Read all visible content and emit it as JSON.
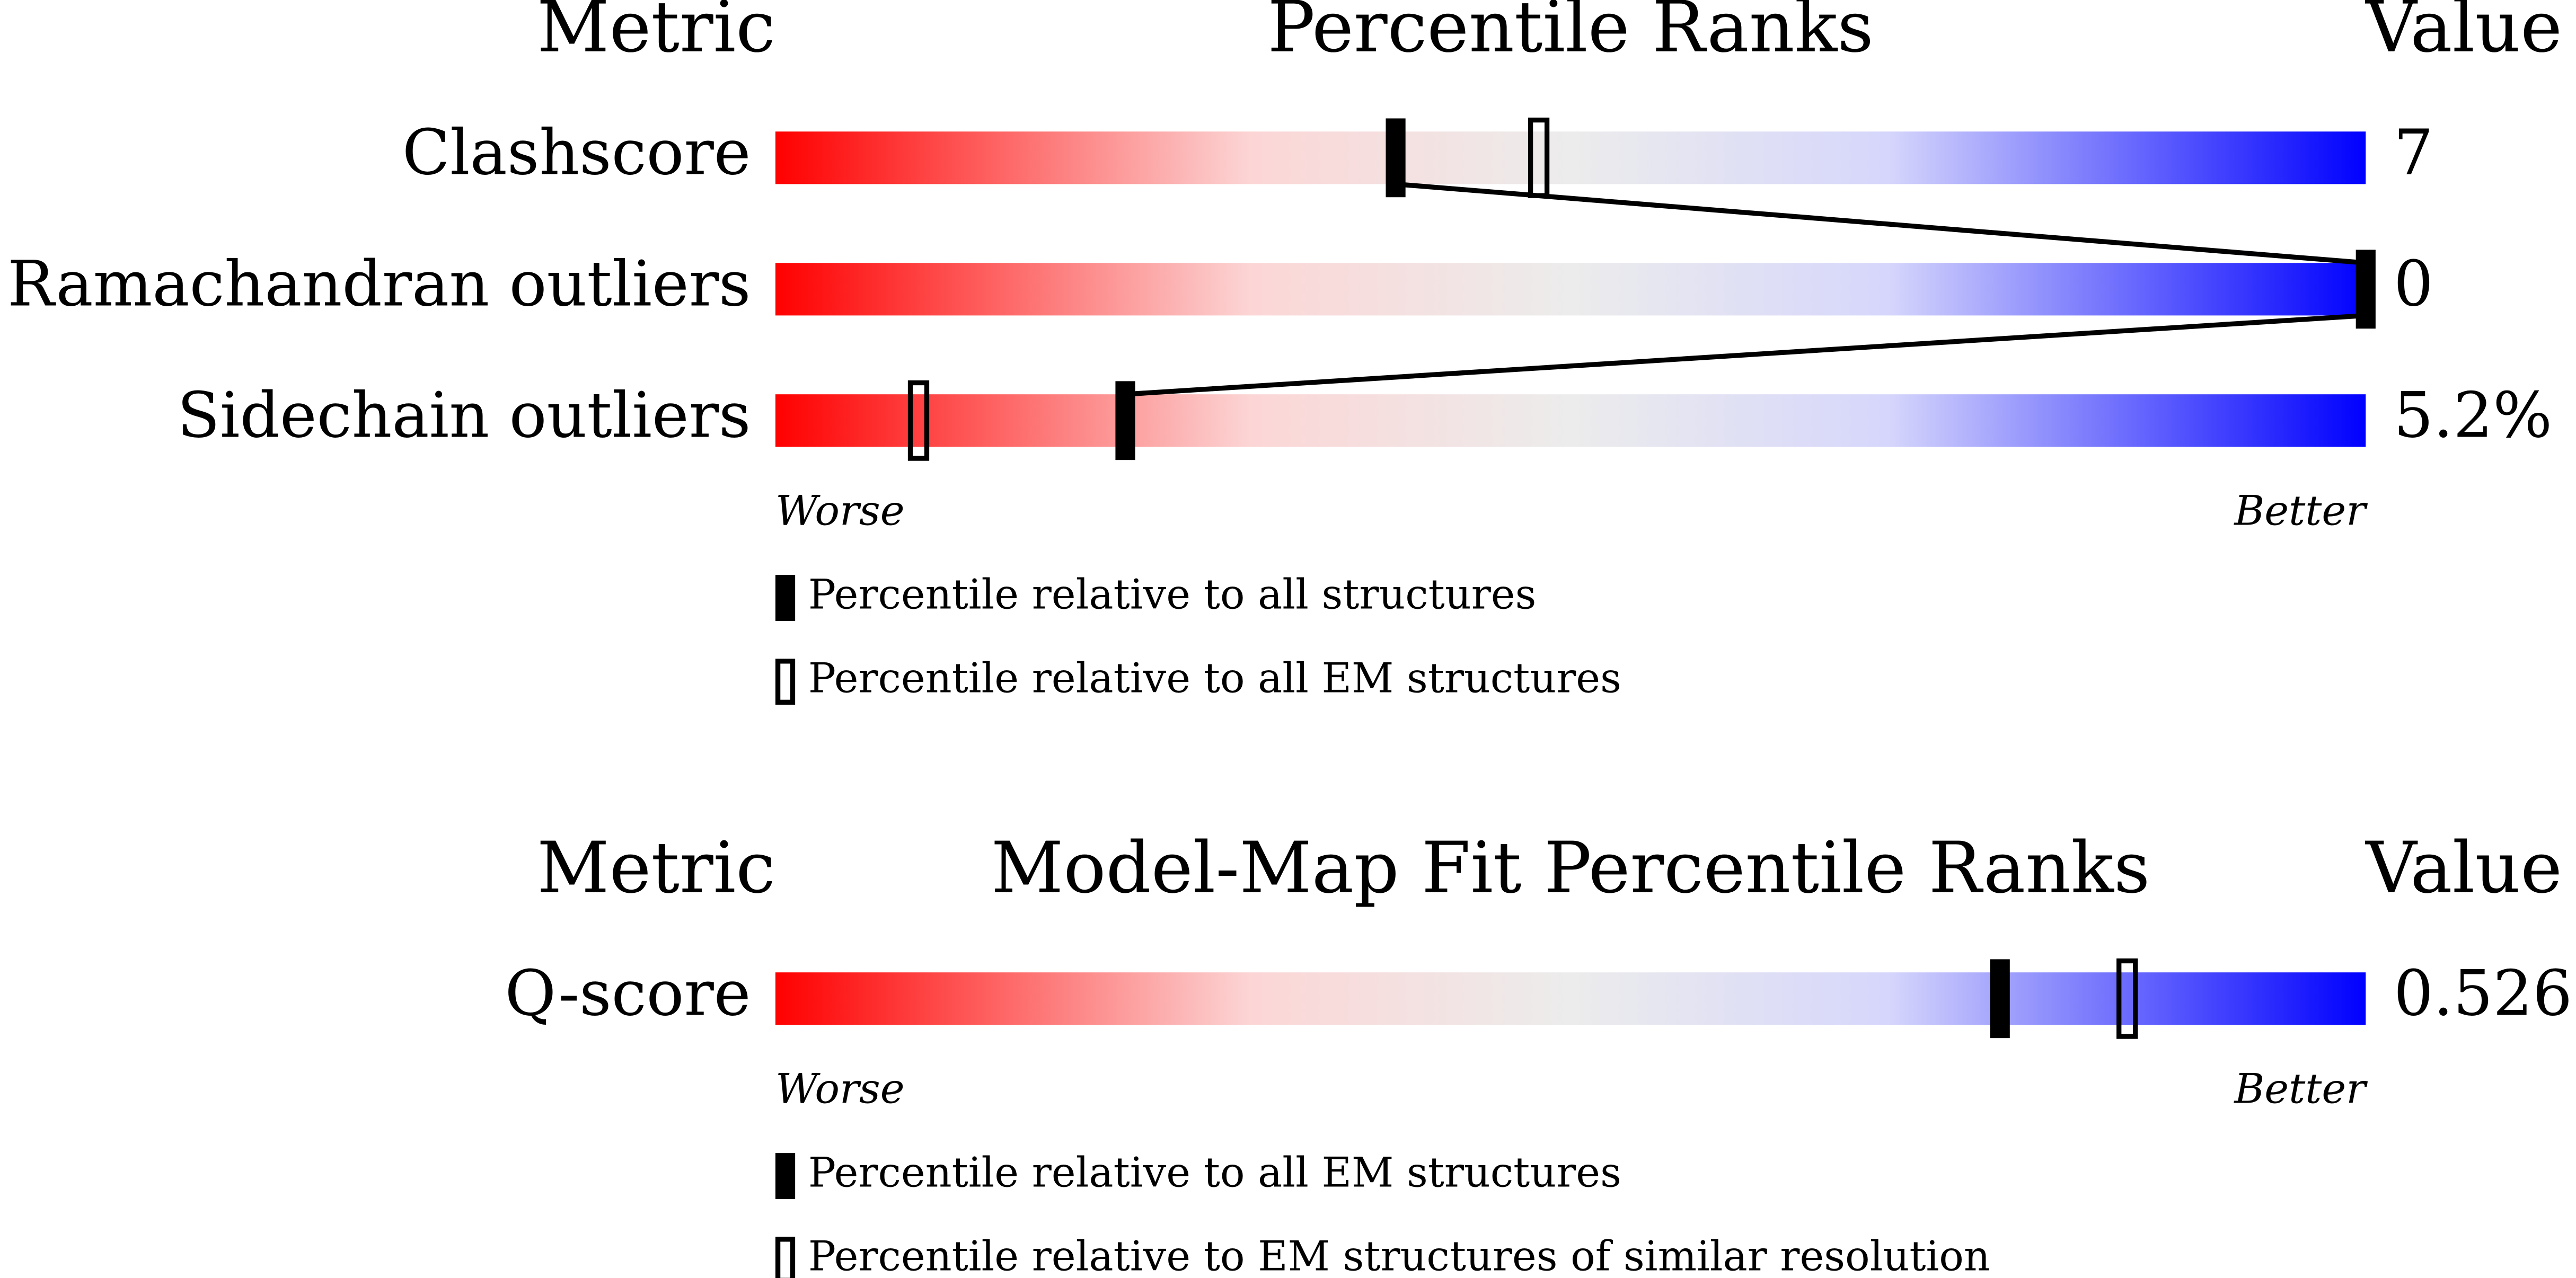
{
  "sections": [
    {
      "headers": {
        "metric": "Metric",
        "ranks": "Percentile Ranks",
        "value": "Value"
      },
      "xlim": [
        0,
        100
      ],
      "metrics": [
        {
          "name": "Clashscore",
          "value": "7",
          "percentile_all": 39,
          "percentile_em": 48
        },
        {
          "name": "Ramachandran outliers",
          "value": "0",
          "percentile_all": 100
        },
        {
          "name": "Sidechain outliers",
          "value": "5.2%",
          "percentile_all": 22,
          "percentile_em": 9
        }
      ],
      "worse": "Worse",
      "better": "Better",
      "legend": [
        "Percentile relative to all structures",
        "Percentile relative to all EM structures"
      ]
    },
    {
      "headers": {
        "metric": "Metric",
        "ranks": "Model-Map Fit Percentile Ranks",
        "value": "Value"
      },
      "xlim": [
        0,
        100
      ],
      "metrics": [
        {
          "name": "Q-score",
          "value": "0.526",
          "percentile_all": 77,
          "percentile_em": 85
        }
      ],
      "worse": "Worse",
      "better": "Better",
      "legend": [
        "Percentile relative to all EM structures",
        "Percentile relative to EM structures of similar resolution"
      ]
    }
  ]
}
